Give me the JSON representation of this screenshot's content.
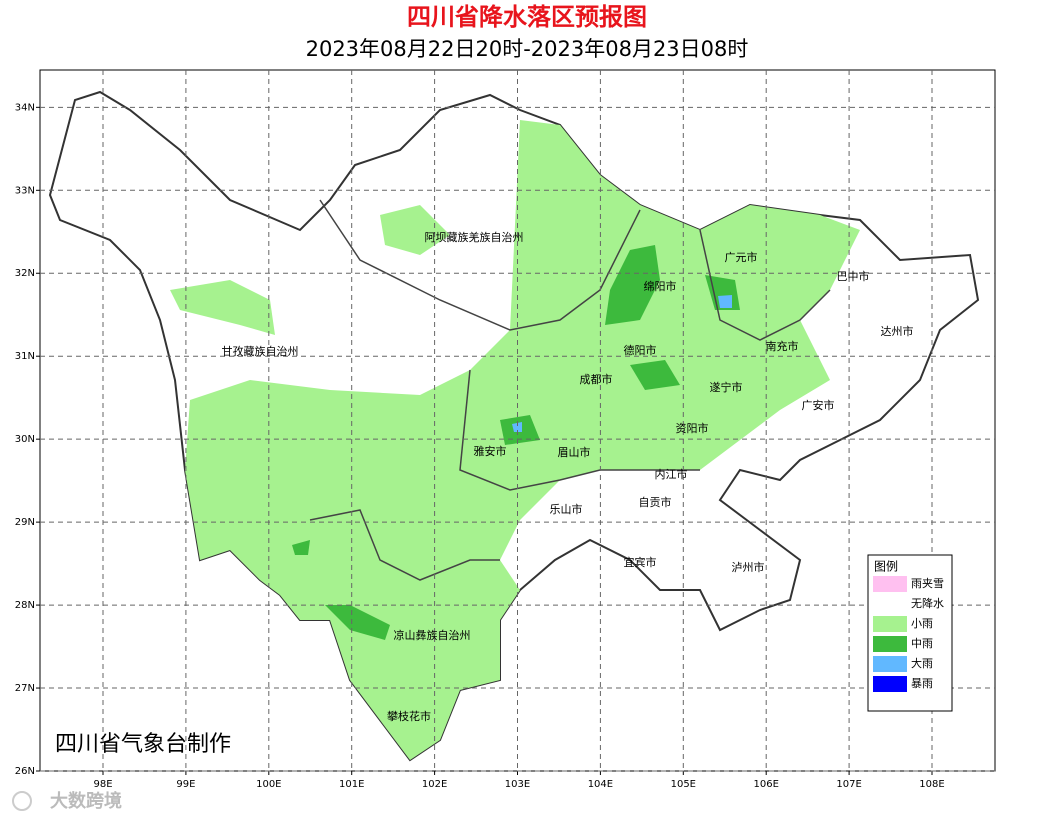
{
  "header": {
    "title": "四川省降水落区预报图",
    "subtitle": "2023年08月22日20时-2023年08月23日08时"
  },
  "map": {
    "xlim": [
      97.24,
      108.76
    ],
    "ylim": [
      26,
      34.45
    ],
    "xticks": [
      {
        "value": 98,
        "label": "98E"
      },
      {
        "value": 99,
        "label": "99E"
      },
      {
        "value": 100,
        "label": "100E"
      },
      {
        "value": 101,
        "label": "101E"
      },
      {
        "value": 102,
        "label": "102E"
      },
      {
        "value": 103,
        "label": "103E"
      },
      {
        "value": 104,
        "label": "104E"
      },
      {
        "value": 105,
        "label": "105E"
      },
      {
        "value": 106,
        "label": "106E"
      },
      {
        "value": 107,
        "label": "107E"
      },
      {
        "value": 108,
        "label": "108E"
      }
    ],
    "yticks": [
      {
        "value": 26,
        "label": "26N"
      },
      {
        "value": 27,
        "label": "27N"
      },
      {
        "value": 28,
        "label": "28N"
      },
      {
        "value": 29,
        "label": "29N"
      },
      {
        "value": 30,
        "label": "30N"
      },
      {
        "value": 31,
        "label": "31N"
      },
      {
        "value": 32,
        "label": "32N"
      },
      {
        "value": 33,
        "label": "33N"
      },
      {
        "value": 34,
        "label": "34N"
      }
    ],
    "grid": true,
    "cities": [
      "阿坝藏族羌族自治州",
      "甘孜藏族自治州",
      "广元市",
      "巴中市",
      "绵阳市",
      "达州市",
      "南充市",
      "德阳市",
      "成都市",
      "遂宁市",
      "广安市",
      "资阳市",
      "雅安市",
      "眉山市",
      "内江市",
      "自贡市",
      "乐山市",
      "宜宾市",
      "泸州市",
      "凉山彝族自治州",
      "攀枝花市"
    ]
  },
  "legend": {
    "title": "图例",
    "items": [
      {
        "label": "雨夹雪",
        "color": "#ffc0f0"
      },
      {
        "label": "无降水",
        "color": "#ffffff"
      },
      {
        "label": "小雨",
        "color": "#a6f28f"
      },
      {
        "label": "中雨",
        "color": "#3dba3d"
      },
      {
        "label": "大雨",
        "color": "#61b8ff"
      },
      {
        "label": "暴雨",
        "color": "#0000fe"
      }
    ]
  },
  "credit": "四川省气象台制作",
  "watermark": "大数跨境"
}
